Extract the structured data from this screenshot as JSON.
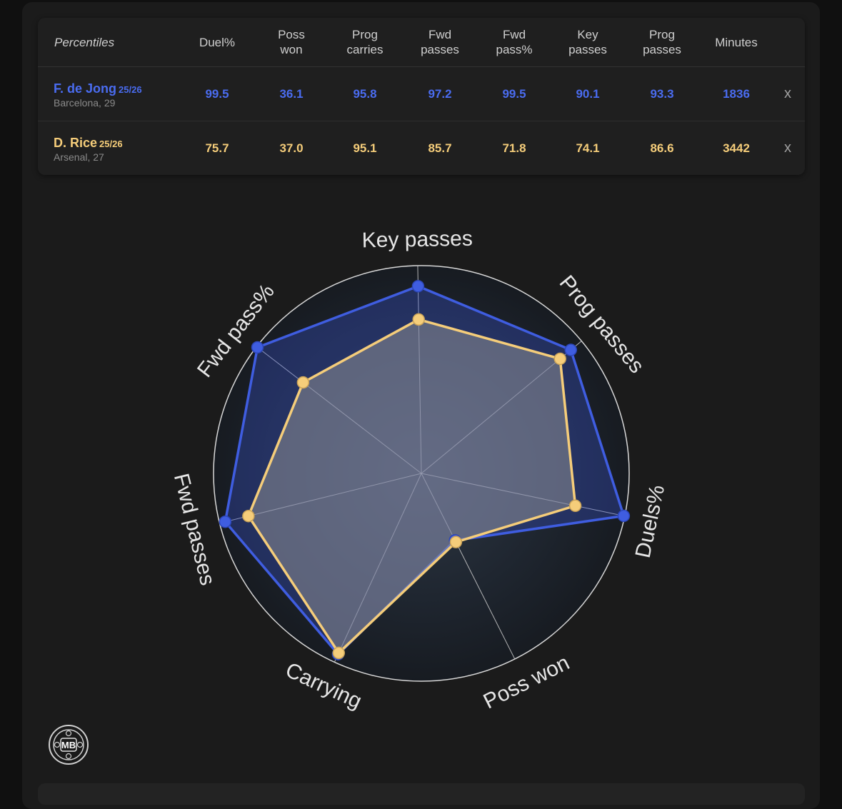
{
  "table": {
    "header_label": "Percentiles",
    "columns": [
      "Duel%",
      "Poss\nwon",
      "Prog\ncarries",
      "Fwd\npasses",
      "Fwd\npass%",
      "Key\npasses",
      "Prog\npasses",
      "Minutes"
    ],
    "players": [
      {
        "name": "F. de Jong",
        "season": "25/26",
        "club": "Barcelona, 29",
        "values": [
          "99.5",
          "36.1",
          "95.8",
          "97.2",
          "99.5",
          "90.1",
          "93.3",
          "1836"
        ],
        "remove_label": "x",
        "color": "#4a6cf0"
      },
      {
        "name": "D. Rice",
        "season": "25/26",
        "club": "Arsenal, 27",
        "values": [
          "75.7",
          "37.0",
          "95.1",
          "85.7",
          "71.8",
          "74.1",
          "86.6",
          "3442"
        ],
        "remove_label": "x",
        "color": "#f5cd7a"
      }
    ]
  },
  "chart_data": {
    "type": "radar",
    "axes": [
      "Key passes",
      "Prog passes",
      "Duels%",
      "Poss won",
      "Carrying",
      "Fwd passes",
      "Fwd pass%"
    ],
    "range": [
      0,
      100
    ],
    "series": [
      {
        "name": "F. de Jong",
        "color": "#3f5de0",
        "values": [
          90.1,
          93.3,
          99.5,
          36.1,
          95.8,
          97.2,
          99.5
        ]
      },
      {
        "name": "D. Rice",
        "color": "#f5cd7a",
        "values": [
          74.1,
          86.6,
          75.7,
          37.0,
          95.1,
          85.7,
          71.8
        ]
      }
    ]
  },
  "logo": {
    "text": "MB",
    "icon": "mb-badge-icon"
  }
}
